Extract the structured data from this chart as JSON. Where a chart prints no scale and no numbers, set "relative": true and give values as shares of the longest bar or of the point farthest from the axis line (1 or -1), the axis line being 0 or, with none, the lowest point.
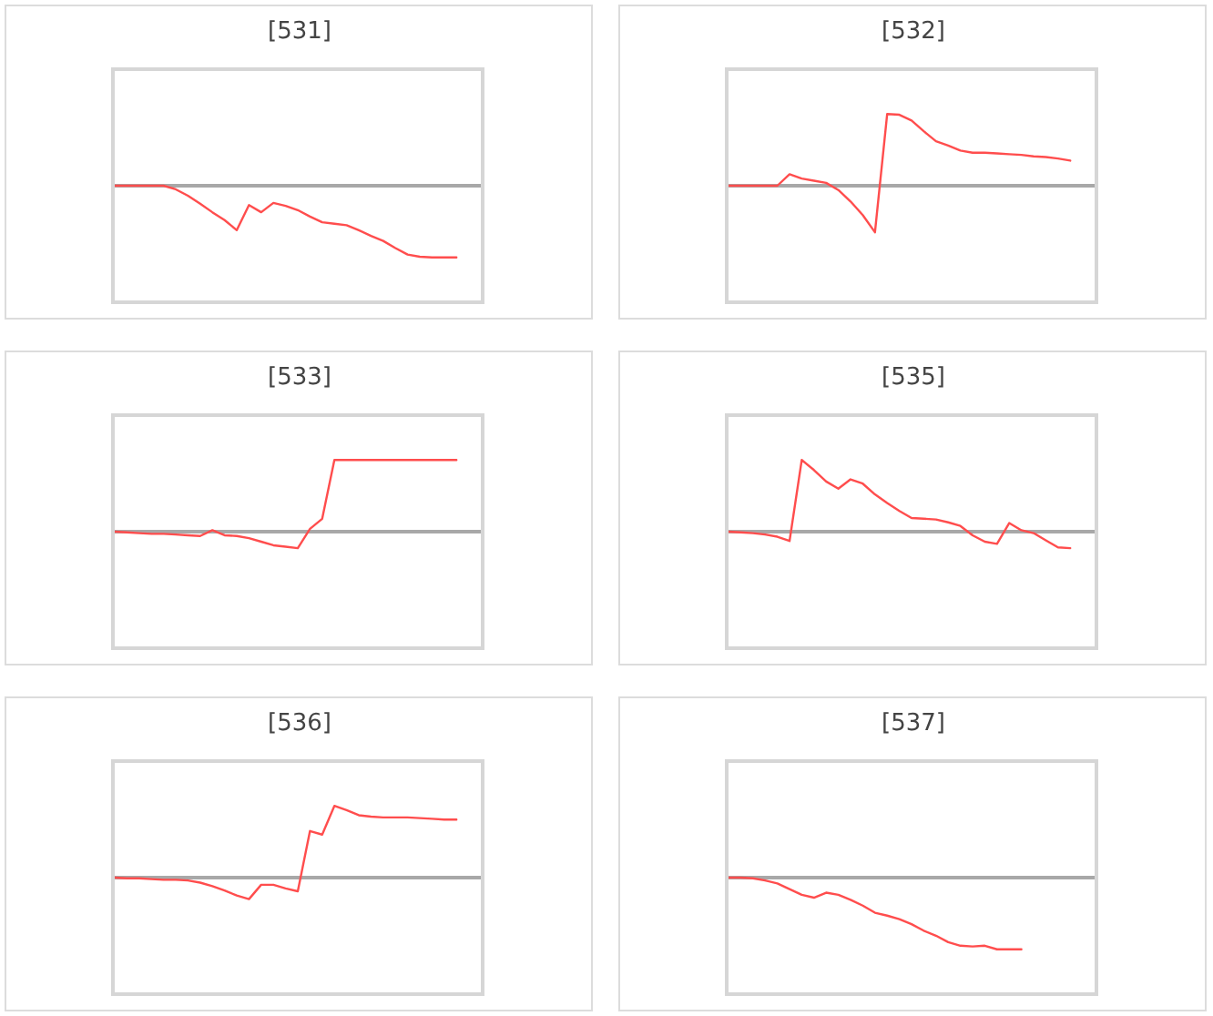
{
  "chart_data": [
    {
      "type": "line",
      "title": "[531]",
      "relative": true,
      "color": "#ff4d4d",
      "categories": [
        null,
        null,
        null,
        null,
        null,
        null,
        null,
        null,
        null,
        null,
        null,
        null,
        null,
        null,
        null,
        null,
        null,
        null,
        null,
        null,
        null,
        null,
        null,
        null,
        null,
        null,
        null,
        null,
        null,
        null,
        null
      ],
      "values": [
        0,
        0,
        0,
        0,
        0,
        -0.05,
        -0.14,
        -0.25,
        -0.37,
        -0.48,
        -0.62,
        -0.27,
        -0.37,
        -0.24,
        -0.28,
        -0.34,
        -0.43,
        -0.51,
        -0.53,
        -0.55,
        -0.62,
        -0.7,
        -0.77,
        -0.87,
        -0.96,
        -0.99,
        -1,
        -1,
        -1,
        null,
        null
      ]
    },
    {
      "type": "line",
      "title": "[532]",
      "relative": true,
      "color": "#ff4d4d",
      "categories": [
        null,
        null,
        null,
        null,
        null,
        null,
        null,
        null,
        null,
        null,
        null,
        null,
        null,
        null,
        null,
        null,
        null,
        null,
        null,
        null,
        null,
        null,
        null,
        null,
        null,
        null,
        null,
        null,
        null,
        null,
        null
      ],
      "values": [
        0,
        0,
        0,
        0,
        0,
        0.16,
        0.1,
        0.07,
        0.04,
        -0.06,
        -0.22,
        -0.41,
        -0.65,
        1,
        0.99,
        0.91,
        0.76,
        0.62,
        0.56,
        0.49,
        0.46,
        0.46,
        0.45,
        0.44,
        0.43,
        0.41,
        0.4,
        0.38,
        0.35,
        null,
        null
      ]
    },
    {
      "type": "line",
      "title": "[533]",
      "relative": true,
      "color": "#ff4d4d",
      "categories": [
        null,
        null,
        null,
        null,
        null,
        null,
        null,
        null,
        null,
        null,
        null,
        null,
        null,
        null,
        null,
        null,
        null,
        null,
        null,
        null,
        null,
        null,
        null,
        null,
        null,
        null,
        null,
        null,
        null,
        null,
        null
      ],
      "values": [
        0,
        -0.01,
        -0.02,
        -0.03,
        -0.03,
        -0.04,
        -0.05,
        -0.06,
        0.02,
        -0.05,
        -0.06,
        -0.09,
        -0.14,
        -0.19,
        -0.21,
        -0.23,
        0.04,
        0.18,
        1,
        1,
        1,
        1,
        1,
        1,
        1,
        1,
        1,
        1,
        1,
        null,
        null
      ]
    },
    {
      "type": "line",
      "title": "[535]",
      "relative": true,
      "color": "#ff4d4d",
      "categories": [
        null,
        null,
        null,
        null,
        null,
        null,
        null,
        null,
        null,
        null,
        null,
        null,
        null,
        null,
        null,
        null,
        null,
        null,
        null,
        null,
        null,
        null,
        null,
        null,
        null,
        null,
        null,
        null,
        null,
        null,
        null
      ],
      "values": [
        0,
        -0.01,
        -0.02,
        -0.04,
        -0.07,
        -0.13,
        1,
        0.86,
        0.7,
        0.6,
        0.73,
        0.67,
        0.52,
        0.4,
        0.29,
        0.19,
        0.18,
        0.17,
        0.13,
        0.08,
        -0.05,
        -0.14,
        -0.17,
        0.12,
        0.02,
        -0.02,
        -0.12,
        -0.22,
        -0.23,
        null,
        null
      ]
    },
    {
      "type": "line",
      "title": "[536]",
      "relative": true,
      "color": "#ff4d4d",
      "categories": [
        null,
        null,
        null,
        null,
        null,
        null,
        null,
        null,
        null,
        null,
        null,
        null,
        null,
        null,
        null,
        null,
        null,
        null,
        null,
        null,
        null,
        null,
        null,
        null,
        null,
        null,
        null,
        null,
        null,
        null,
        null
      ],
      "values": [
        0,
        -0.01,
        -0.01,
        -0.02,
        -0.03,
        -0.03,
        -0.04,
        -0.07,
        -0.12,
        -0.18,
        -0.25,
        -0.3,
        -0.1,
        -0.1,
        -0.15,
        -0.19,
        0.65,
        0.6,
        1,
        0.94,
        0.87,
        0.85,
        0.84,
        0.84,
        0.84,
        0.83,
        0.82,
        0.81,
        0.81,
        null,
        null
      ]
    },
    {
      "type": "line",
      "title": "[537]",
      "relative": true,
      "color": "#ff4d4d",
      "categories": [
        null,
        null,
        null,
        null,
        null,
        null,
        null,
        null,
        null,
        null,
        null,
        null,
        null,
        null,
        null,
        null,
        null,
        null,
        null,
        null,
        null,
        null,
        null,
        null,
        null,
        null,
        null,
        null,
        null,
        null,
        null
      ],
      "values": [
        0,
        0,
        -0.01,
        -0.04,
        -0.08,
        -0.16,
        -0.24,
        -0.28,
        -0.21,
        -0.24,
        -0.31,
        -0.39,
        -0.49,
        -0.53,
        -0.58,
        -0.65,
        -0.74,
        -0.81,
        -0.9,
        -0.95,
        -0.96,
        -0.95,
        -1,
        -1,
        -1,
        null,
        null,
        null,
        null,
        null,
        null
      ]
    }
  ]
}
